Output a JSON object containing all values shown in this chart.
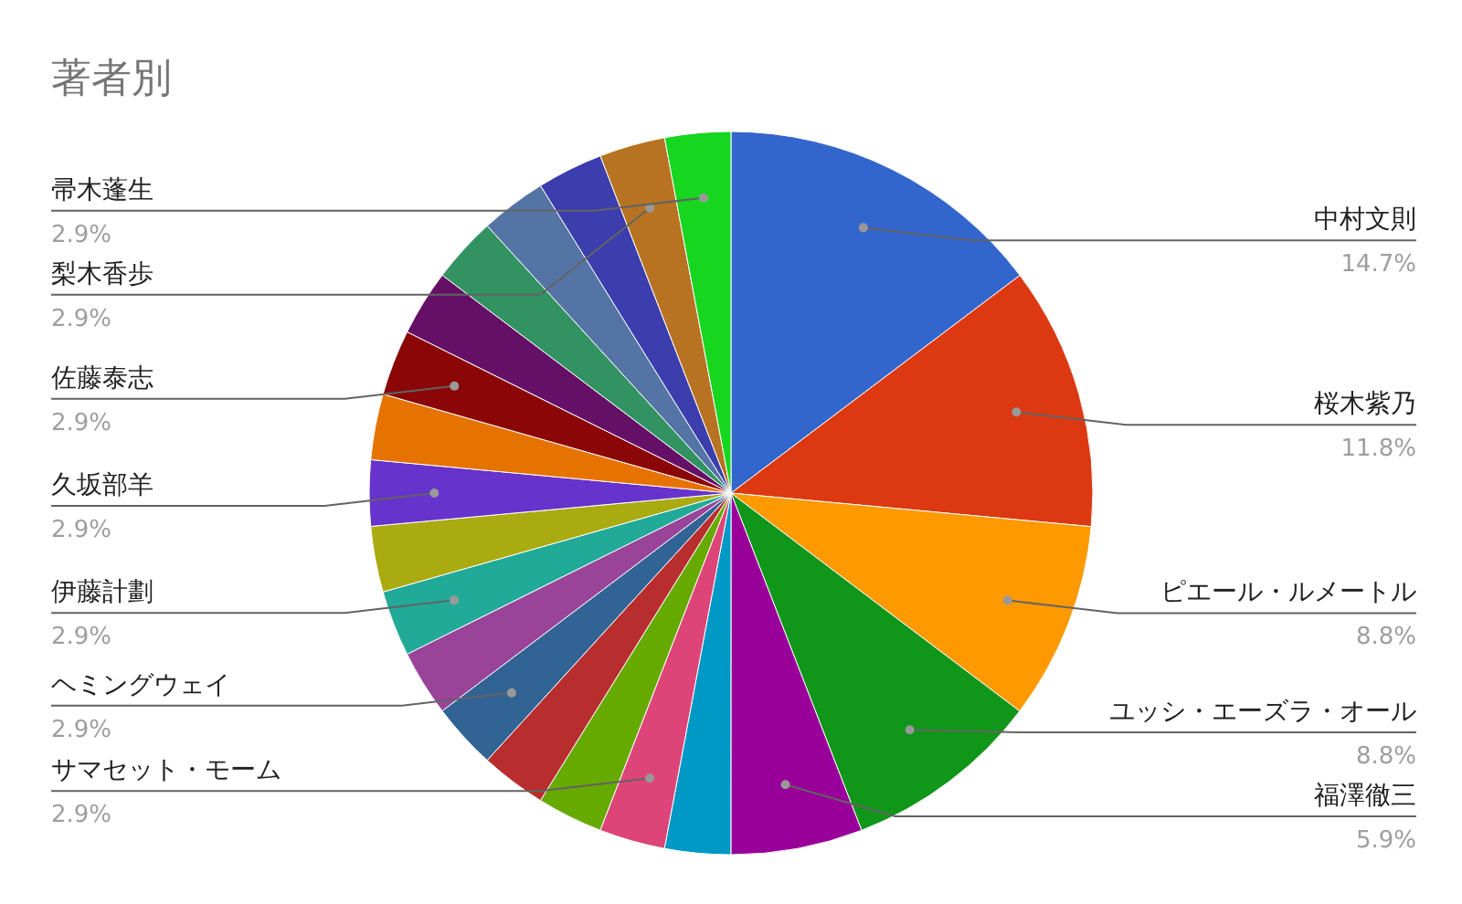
{
  "chart_data": {
    "type": "pie",
    "title": "著者別",
    "categories": [
      "中村文則",
      "桜木紫乃",
      "ピエール・ルメートル",
      "ユッシ・エーズラ・オール",
      "福澤徹三",
      null,
      "サマセット・モーム",
      null,
      null,
      "ヘミングウェイ",
      null,
      "伊藤計劃",
      null,
      "久坂部羊",
      null,
      "佐藤泰志",
      null,
      null,
      null,
      null,
      "梨木香歩",
      "帚木蓬生"
    ],
    "values": [
      14.71,
      11.76,
      8.82,
      8.82,
      5.88,
      2.94,
      2.94,
      2.94,
      2.94,
      2.94,
      2.94,
      2.94,
      2.94,
      2.94,
      2.94,
      2.94,
      2.94,
      2.94,
      2.94,
      2.94,
      2.94,
      2.94
    ],
    "value_labels": [
      "14.7%",
      "11.8%",
      "8.8%",
      "8.8%",
      "5.9%",
      null,
      "2.9%",
      null,
      null,
      "2.9%",
      null,
      "2.9%",
      null,
      "2.9%",
      null,
      "2.9%",
      null,
      null,
      null,
      null,
      "2.9%",
      "2.9%"
    ],
    "colors": [
      "#3366cc",
      "#dc3912",
      "#ff9900",
      "#109618",
      "#990099",
      "#0099c6",
      "#dd4477",
      "#66aa00",
      "#b82e2e",
      "#316395",
      "#994499",
      "#22aa99",
      "#aaaa11",
      "#6633cc",
      "#e67300",
      "#8b0707",
      "#651067",
      "#329262",
      "#5574a6",
      "#3b3eac",
      "#b77322",
      "#16d620"
    ]
  }
}
